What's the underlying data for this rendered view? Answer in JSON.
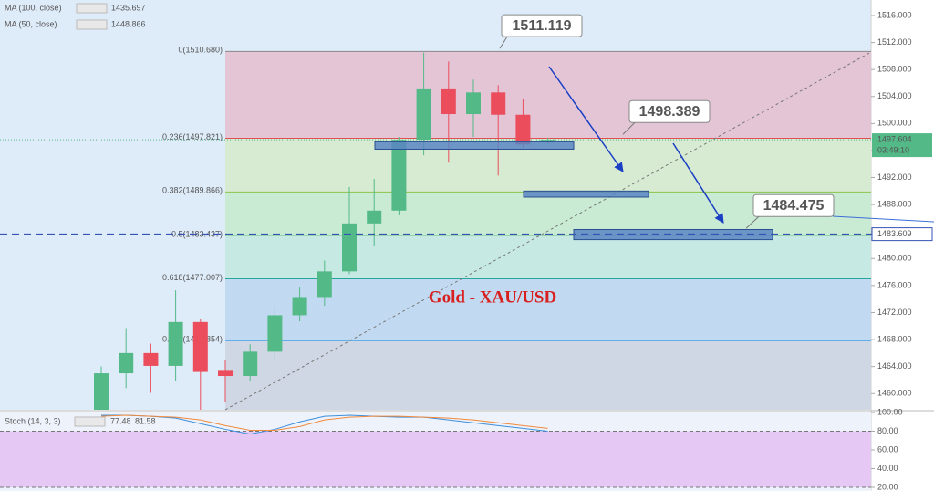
{
  "chart_data": {
    "type": "candlestick",
    "title": "Gold - XAU/USD",
    "ylim": [
      1457.6,
      1518.3
    ],
    "yticks": [
      {
        "value": 1460,
        "label": "1460.000"
      },
      {
        "value": 1464,
        "label": "1464.000"
      },
      {
        "value": 1468,
        "label": "1468.000"
      },
      {
        "value": 1472,
        "label": "1472.000"
      },
      {
        "value": 1476,
        "label": "1476.000"
      },
      {
        "value": 1480,
        "label": "1480.000"
      },
      {
        "value": 1484,
        "label": "1484.000"
      },
      {
        "value": 1488,
        "label": "1488.000"
      },
      {
        "value": 1492,
        "label": "1492.000"
      },
      {
        "value": 1496,
        "label": "1496.000"
      },
      {
        "value": 1500,
        "label": "1500.000"
      },
      {
        "value": 1504,
        "label": "1504.000"
      },
      {
        "value": 1508,
        "label": "1508.000"
      },
      {
        "value": 1512,
        "label": "1512.000"
      },
      {
        "value": 1516,
        "label": "1516.000"
      }
    ],
    "up_color": "#53b987",
    "down_color": "#eb4d5c",
    "candles": {
      "open": [
        1457.0,
        1463.0,
        1466.0,
        1464.1,
        1470.6,
        1463.5,
        1462.6,
        1466.2,
        1471.6,
        1474.3,
        1478.1,
        1485.2,
        1487.1,
        1497.6,
        1505.2,
        1501.4,
        1504.6,
        1501.3,
        1497.2
      ],
      "high": [
        1464.0,
        1469.7,
        1467.4,
        1475.3,
        1471.0,
        1464.9,
        1467.3,
        1473.0,
        1475.7,
        1479.7,
        1490.6,
        1491.8,
        1498.0,
        1510.5,
        1509.2,
        1506.5,
        1505.7,
        1503.7,
        1497.9
      ],
      "low": [
        1457.0,
        1460.8,
        1460.1,
        1461.8,
        1457.6,
        1458.8,
        1461.8,
        1464.9,
        1470.7,
        1473.0,
        1477.7,
        1481.8,
        1486.4,
        1495.3,
        1494.2,
        1498.0,
        1492.3,
        1496.4,
        1497.0
      ],
      "close": [
        1463.0,
        1466.0,
        1464.1,
        1470.6,
        1463.2,
        1462.6,
        1466.2,
        1471.6,
        1474.3,
        1478.1,
        1485.2,
        1487.1,
        1497.6,
        1505.2,
        1501.4,
        1504.6,
        1501.3,
        1496.9,
        1497.6
      ]
    },
    "indicators": [
      {
        "name": "MA (100, close)",
        "value": 1435.697,
        "color": "#2e9e5b"
      },
      {
        "name": "MA (50, close)",
        "value": 1448.866,
        "color": "#d8c84a"
      }
    ],
    "fib": [
      {
        "label": "0(1510.680)",
        "value": 1510.68,
        "color": "#888888",
        "fill": "#e3c5d5"
      },
      {
        "label": "0.236(1497.821)",
        "value": 1497.821,
        "color": "#e05050",
        "fill": "#d6ebd2"
      },
      {
        "label": "0.382(1489.866)",
        "value": 1489.866,
        "color": "#8bc34a",
        "fill": "#c9ebd4"
      },
      {
        "label": "0.5(1483.437)",
        "value": 1483.437,
        "color": "#4caf50",
        "fill": "#c6e9e4"
      },
      {
        "label": "0.618(1477.007)",
        "value": 1477.007,
        "color": "#26a69a",
        "fill": "#c2daf1"
      },
      {
        "label": "0.786(1467.854)",
        "value": 1467.854,
        "color": "#2196f3",
        "fill": "#ced7e3"
      }
    ],
    "callouts": [
      1511.119,
      1498.389,
      1484.475
    ],
    "zones": [
      {
        "top": 1497.3,
        "bottom": 1496.2
      },
      {
        "top": 1490.0,
        "bottom": 1489.1
      },
      {
        "top": 1484.3,
        "bottom": 1482.8
      }
    ],
    "last_price": 1497.604,
    "countdown": "03:49:10",
    "line_price": 1483.609,
    "stoch": {
      "name": "Stoch (14, 3, 3)",
      "ylim": [
        16.1,
        102.9
      ],
      "yticks": [
        {
          "value": 100,
          "label": "100.00"
        },
        {
          "value": 80,
          "label": "80.00"
        },
        {
          "value": 60,
          "label": "60.00"
        },
        {
          "value": 40,
          "label": "40.00"
        },
        {
          "value": 20,
          "label": "20.00"
        }
      ],
      "band": [
        20,
        80
      ],
      "series": [
        {
          "value": 77.48,
          "color": "#3d8fdc",
          "values": [
            97,
            97,
            96,
            94,
            88,
            82,
            77,
            82,
            90,
            96,
            97,
            96,
            95,
            95,
            92,
            89,
            86,
            83,
            80
          ]
        },
        {
          "value": 81.58,
          "color": "#f08a3c",
          "values": [
            96,
            97,
            96,
            95,
            92,
            86,
            81,
            81,
            85,
            92,
            95,
            96,
            96,
            95,
            94,
            92,
            89,
            86,
            83
          ]
        }
      ]
    }
  }
}
